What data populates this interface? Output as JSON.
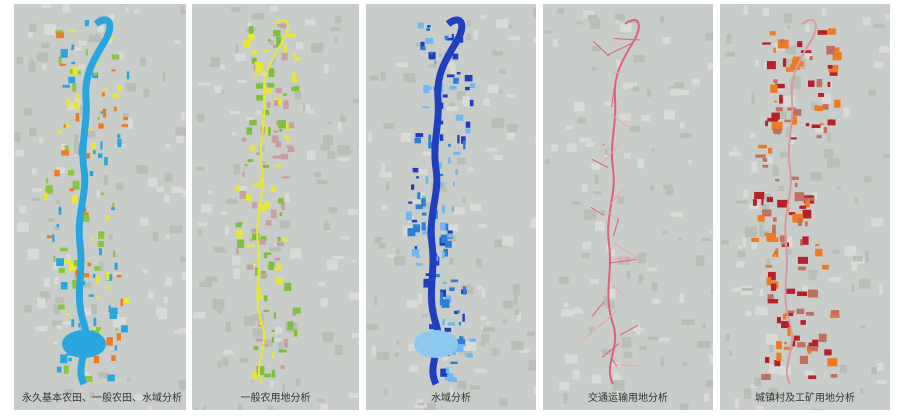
{
  "panels": [
    {
      "caption": "永久基本农田、一般农田、水域分析",
      "colors": [
        "#2aa6df",
        "#f07a22",
        "#e8e833",
        "#8cc63f"
      ]
    },
    {
      "caption": "一般农用地分析",
      "colors": [
        "#e8e833",
        "#7fbf3f",
        "#c8a0a0"
      ]
    },
    {
      "caption": "水域分析",
      "colors": [
        "#1f3fbf",
        "#2b7fd8",
        "#6fb8f0"
      ]
    },
    {
      "caption": "交通运输用地分析",
      "colors": [
        "#e0607a",
        "#f0a0b0"
      ]
    },
    {
      "caption": "城镇村及工矿用地分析",
      "colors": [
        "#b5202a",
        "#f07a22",
        "#c07060"
      ]
    }
  ]
}
